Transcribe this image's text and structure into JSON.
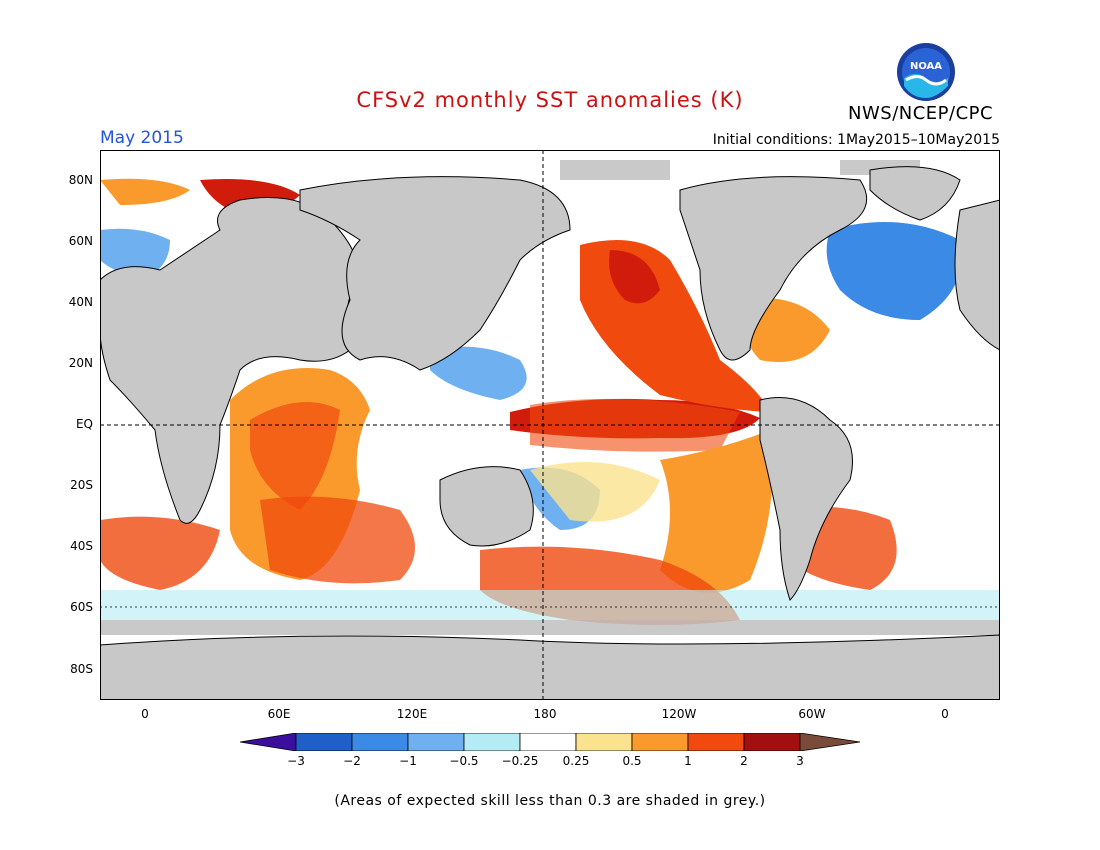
{
  "header": {
    "title": "CFSv2 monthly SST anomalies (K)",
    "agency": "NWS/NCEP/CPC",
    "logo_text": "NOAA",
    "valid_month": "May 2015",
    "initial_conditions": "Initial conditions: 1May2015–10May2015"
  },
  "colors": {
    "title": "#cc1111",
    "valid_month": "#2255dd",
    "land": "#c8c8c8",
    "low_skill": "#bfbfbf"
  },
  "axes": {
    "lat_labels": [
      "80N",
      "60N",
      "40N",
      "20N",
      "EQ",
      "20S",
      "40S",
      "60S",
      "80S"
    ],
    "lon_labels": [
      "0",
      "60E",
      "120E",
      "180",
      "120W",
      "60W",
      "0"
    ]
  },
  "colorbar": {
    "ticks": [
      "−3",
      "−2",
      "−1",
      "−0.5",
      "−0.25",
      "0.25",
      "0.5",
      "1",
      "2",
      "3"
    ],
    "colors": [
      "#3a0f9e",
      "#1f5fc8",
      "#3b8ae6",
      "#6fb0f0",
      "#b4ecf5",
      "#ffffff",
      "#fbe28f",
      "#fb9a2c",
      "#f04a0e",
      "#d11c0c",
      "#a20f0f",
      "#7a4a3a"
    ]
  },
  "footnote": "(Areas of expected skill less than 0.3 are shaded in grey.)"
}
